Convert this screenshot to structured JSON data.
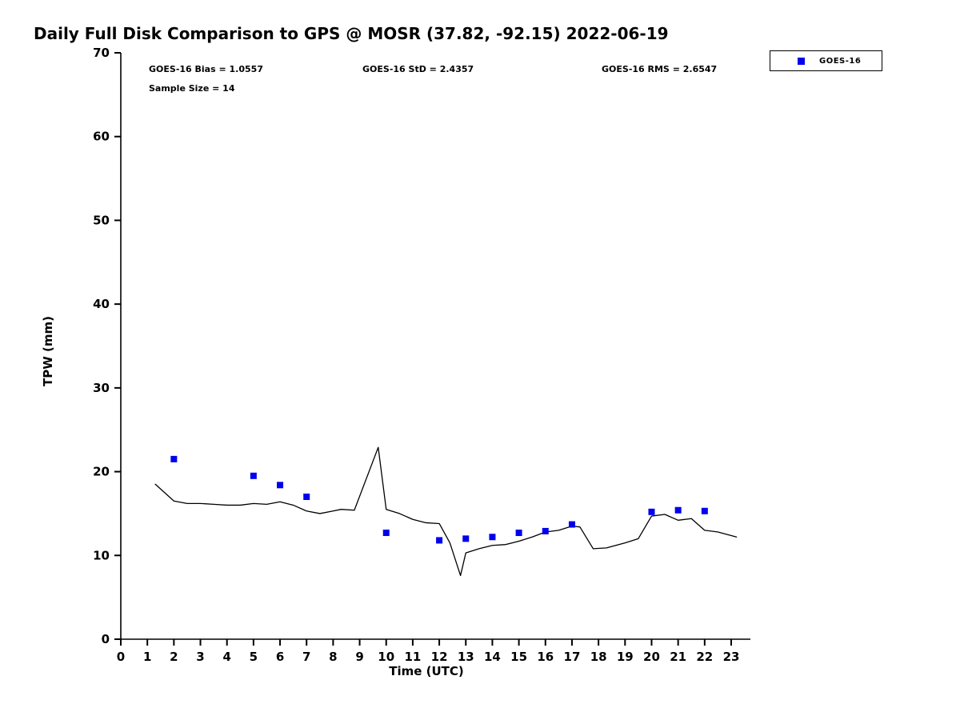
{
  "title": "Daily Full Disk Comparison to GPS @ MOSR (37.82, -92.15) 2022-06-19",
  "stats": {
    "bias": "GOES-16 Bias = 1.0557",
    "std": "GOES-16 StD = 2.4357",
    "rms": "GOES-16 RMS = 2.6547",
    "sample_size": "Sample Size = 14"
  },
  "legend": {
    "entries": [
      {
        "label": "GOES-16",
        "marker": "square",
        "color": "#0000ee"
      }
    ],
    "position": "top-right"
  },
  "axes": {
    "xlabel": "Time (UTC)",
    "ylabel": "TPW (mm)"
  },
  "chart_data": {
    "type": "line",
    "title": "Daily Full Disk Comparison to GPS @ MOSR (37.82, -92.15) 2022-06-19",
    "xlabel": "Time (UTC)",
    "ylabel": "TPW (mm)",
    "xlim": [
      0,
      23
    ],
    "ylim": [
      0,
      70
    ],
    "xticks": [
      0,
      1,
      2,
      3,
      4,
      5,
      6,
      7,
      8,
      9,
      10,
      11,
      12,
      13,
      14,
      15,
      16,
      17,
      18,
      19,
      20,
      21,
      22,
      23
    ],
    "yticks": [
      0,
      10,
      20,
      30,
      40,
      50,
      60,
      70
    ],
    "grid": false,
    "legend_position": "top-right",
    "annotations": [
      "GOES-16 Bias = 1.0557",
      "GOES-16 StD = 2.4357",
      "GOES-16 RMS = 2.6547",
      "Sample Size = 14"
    ],
    "series": [
      {
        "name": "GPS",
        "type": "line",
        "color": "#000000",
        "x": [
          1.3,
          2,
          2.5,
          3,
          3.5,
          4,
          4.5,
          5,
          5.5,
          6,
          6.5,
          7,
          7.5,
          8,
          8.3,
          8.8,
          9.7,
          10,
          10.5,
          11,
          11.5,
          12,
          12.4,
          12.8,
          13,
          13.5,
          14,
          14.5,
          15,
          15.5,
          16,
          16.5,
          17,
          17.3,
          17.8,
          18.3,
          19,
          19.5,
          20,
          20.5,
          21,
          21.5,
          22,
          22.5,
          23.2
        ],
        "y": [
          18.5,
          16.5,
          16.2,
          16.2,
          16.1,
          16.0,
          16.0,
          16.2,
          16.1,
          16.4,
          16.0,
          15.3,
          15.0,
          15.3,
          15.5,
          15.4,
          22.9,
          15.5,
          15.0,
          14.3,
          13.9,
          13.8,
          11.5,
          7.6,
          10.3,
          10.8,
          11.2,
          11.3,
          11.7,
          12.2,
          12.8,
          13.0,
          13.5,
          13.4,
          10.8,
          10.9,
          11.5,
          12.0,
          14.7,
          14.9,
          14.2,
          14.4,
          13.0,
          12.8,
          12.2
        ]
      },
      {
        "name": "GOES-16",
        "type": "scatter",
        "marker": "square",
        "color": "#0000ee",
        "x": [
          2,
          5,
          6,
          7,
          10,
          12,
          13,
          14,
          15,
          16,
          17,
          20,
          21,
          22
        ],
        "y": [
          21.5,
          19.5,
          18.4,
          17.0,
          12.7,
          11.8,
          12.0,
          12.2,
          12.7,
          12.9,
          13.7,
          15.2,
          15.4,
          15.3
        ]
      }
    ]
  }
}
